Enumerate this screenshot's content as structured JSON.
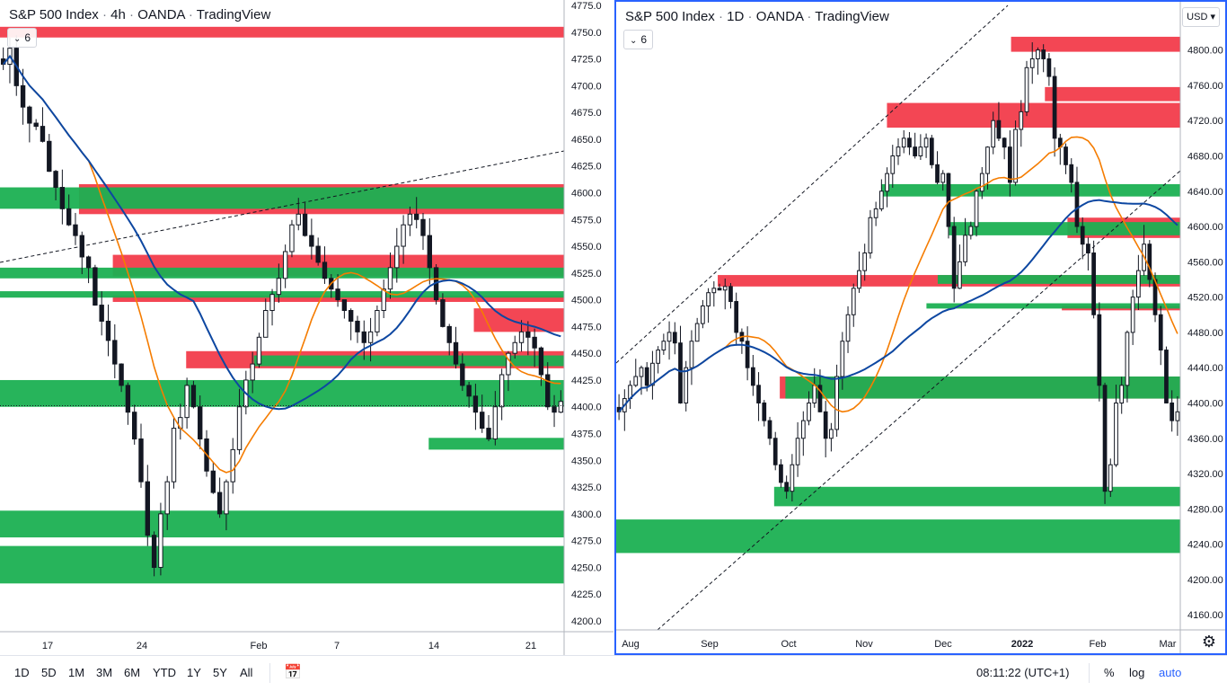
{
  "left_pane": {
    "title": {
      "symbol": "S&P 500 Index",
      "interval": "4h",
      "broker": "OANDA",
      "platform": "TradingView"
    },
    "indicator_badge": "6",
    "price_axis": [
      "4775.0",
      "4750.0",
      "4725.0",
      "4700.0",
      "4675.0",
      "4650.0",
      "4625.0",
      "4600.0",
      "4575.0",
      "4550.0",
      "4525.0",
      "4500.0",
      "4475.0",
      "4450.0",
      "4425.0",
      "4400.0",
      "4375.0",
      "4350.0",
      "4325.0",
      "4300.0",
      "4275.0",
      "4250.0",
      "4225.0",
      "4200.0"
    ],
    "time_axis": [
      "17",
      "24",
      "Feb",
      "7",
      "14",
      "21"
    ]
  },
  "right_pane": {
    "title": {
      "symbol": "S&P 500 Index",
      "interval": "1D",
      "broker": "OANDA",
      "platform": "TradingView"
    },
    "indicator_badge": "6",
    "currency": "USD",
    "price_axis": [
      "4800.00",
      "4760.00",
      "4720.00",
      "4680.00",
      "4640.00",
      "4600.00",
      "4560.00",
      "4520.00",
      "4480.00",
      "4440.00",
      "4400.00",
      "4360.00",
      "4320.00",
      "4280.00",
      "4240.00",
      "4200.00",
      "4160.00"
    ],
    "time_axis": [
      "Aug",
      "Sep",
      "Oct",
      "Nov",
      "Dec",
      "2022",
      "Feb",
      "Mar"
    ]
  },
  "bottom_bar": {
    "ranges": [
      "1D",
      "5D",
      "1M",
      "3M",
      "6M",
      "YTD",
      "1Y",
      "5Y",
      "All"
    ],
    "clock": "08:11:22 (UTC+1)",
    "percent": "%",
    "log": "log",
    "auto": "auto"
  },
  "colors": {
    "demand_zone": "#1bb052",
    "supply_zone": "#f23645",
    "ma_orange": "#f57c00",
    "ma_blue": "#0d47a1",
    "candle": "#131722",
    "accent": "#2962ff"
  },
  "icons": {
    "compare": "calendar-range-icon",
    "settings": "gear-icon",
    "chevron": "chevron-down-icon"
  },
  "chart_data": [
    {
      "type": "candlestick",
      "symbol": "S&P 500 Index",
      "interval": "4h",
      "ylim": [
        4200,
        4775
      ],
      "x_ticks": [
        "17",
        "24",
        "Feb",
        "7",
        "14",
        "21"
      ],
      "closes": [
        4720,
        4735,
        4700,
        4680,
        4665,
        4662,
        4648,
        4620,
        4605,
        4585,
        4570,
        4560,
        4540,
        4530,
        4495,
        4480,
        4462,
        4440,
        4420,
        4395,
        4370,
        4330,
        4280,
        4250,
        4300,
        4330,
        4380,
        4390,
        4420,
        4400,
        4370,
        4340,
        4320,
        4300,
        4330,
        4360,
        4400,
        4425,
        4440,
        4465,
        4490,
        4505,
        4520,
        4545,
        4570,
        4580,
        4560,
        4550,
        4535,
        4520,
        4510,
        4500,
        4490,
        4480,
        4470,
        4460,
        4470,
        4490,
        4510,
        4530,
        4550,
        4570,
        4580,
        4575,
        4560,
        4530,
        4500,
        4475,
        4460,
        4440,
        4420,
        4410,
        4395,
        4380,
        4370,
        4400,
        4430,
        4450,
        4460,
        4470,
        4465,
        4455,
        4430,
        4400,
        4395,
        4405
      ],
      "zones": [
        {
          "kind": "supply",
          "from": 4745,
          "to": 4755
        },
        {
          "kind": "supply",
          "from": 4580,
          "to": 4608
        },
        {
          "kind": "supply",
          "from": 4522,
          "to": 4542
        },
        {
          "kind": "supply",
          "from": 4498,
          "to": 4504
        },
        {
          "kind": "supply",
          "from": 4470,
          "to": 4492
        },
        {
          "kind": "supply",
          "from": 4436,
          "to": 4452
        },
        {
          "kind": "demand",
          "from": 4585,
          "to": 4605
        },
        {
          "kind": "demand",
          "from": 4520,
          "to": 4530
        },
        {
          "kind": "demand",
          "from": 4502,
          "to": 4508
        },
        {
          "kind": "demand",
          "from": 4400,
          "to": 4425
        },
        {
          "kind": "demand",
          "from": 4438,
          "to": 4448
        },
        {
          "kind": "demand",
          "from": 4360,
          "to": 4371
        },
        {
          "kind": "demand",
          "from": 4278,
          "to": 4303
        },
        {
          "kind": "demand",
          "from": 4235,
          "to": 4270
        }
      ],
      "last_price": 4401
    },
    {
      "type": "candlestick",
      "symbol": "S&P 500 Index",
      "interval": "1D",
      "ylim": [
        4150,
        4820
      ],
      "x_ticks": [
        "Aug",
        "Sep",
        "Oct",
        "Nov",
        "Dec",
        "2022",
        "Feb",
        "Mar"
      ],
      "closes": [
        4390,
        4405,
        4420,
        4430,
        4440,
        4420,
        4445,
        4460,
        4470,
        4480,
        4468,
        4400,
        4440,
        4470,
        4490,
        4510,
        4525,
        4530,
        4528,
        4532,
        4515,
        4480,
        4470,
        4440,
        4420,
        4400,
        4380,
        4360,
        4330,
        4310,
        4300,
        4330,
        4360,
        4380,
        4400,
        4420,
        4390,
        4360,
        4370,
        4430,
        4470,
        4500,
        4530,
        4550,
        4570,
        4610,
        4620,
        4640,
        4660,
        4680,
        4690,
        4700,
        4690,
        4680,
        4690,
        4700,
        4670,
        4650,
        4660,
        4600,
        4530,
        4560,
        4590,
        4600,
        4640,
        4660,
        4690,
        4720,
        4700,
        4690,
        4650,
        4710,
        4730,
        4780,
        4790,
        4800,
        4790,
        4770,
        4700,
        4690,
        4670,
        4650,
        4600,
        4580,
        4570,
        4500,
        4420,
        4300,
        4330,
        4400,
        4420,
        4480,
        4520,
        4550,
        4580,
        4540,
        4500,
        4460,
        4400,
        4380,
        4390
      ],
      "zones": [
        {
          "kind": "supply",
          "from": 4798,
          "to": 4815
        },
        {
          "kind": "supply",
          "from": 4742,
          "to": 4758
        },
        {
          "kind": "supply",
          "from": 4712,
          "to": 4740
        },
        {
          "kind": "supply",
          "from": 4532,
          "to": 4545
        },
        {
          "kind": "supply",
          "from": 4587,
          "to": 4610
        },
        {
          "kind": "supply",
          "from": 4505,
          "to": 4510
        },
        {
          "kind": "supply",
          "from": 4405,
          "to": 4430
        },
        {
          "kind": "demand",
          "from": 4634,
          "to": 4648
        },
        {
          "kind": "demand",
          "from": 4590,
          "to": 4605
        },
        {
          "kind": "demand",
          "from": 4535,
          "to": 4545
        },
        {
          "kind": "demand",
          "from": 4507,
          "to": 4513
        },
        {
          "kind": "demand",
          "from": 4405,
          "to": 4430
        },
        {
          "kind": "demand",
          "from": 4283,
          "to": 4305
        },
        {
          "kind": "demand",
          "from": 4230,
          "to": 4268
        }
      ]
    }
  ]
}
